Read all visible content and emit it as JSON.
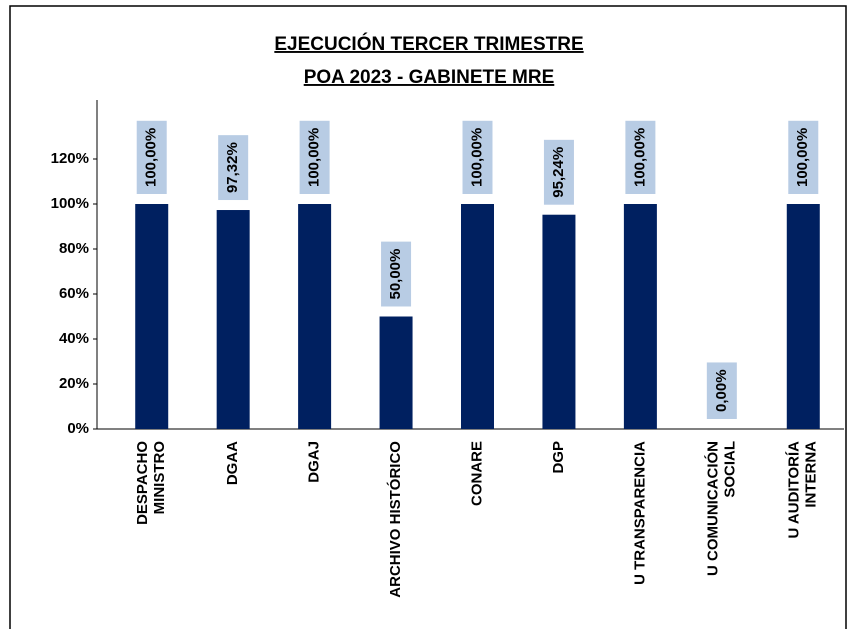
{
  "chart_data": {
    "type": "bar",
    "title": [
      "EJECUCIÓN TERCER TRIMESTRE",
      "POA 2023 - GABINETE MRE"
    ],
    "categories": [
      [
        "DESPACHO",
        "MINISTRO"
      ],
      [
        "DGAA"
      ],
      [
        "DGAJ"
      ],
      [
        "ARCHIVO HISTÓRICO"
      ],
      [
        "CONARE"
      ],
      [
        "DGP"
      ],
      [
        "U TRANSPARENCIA"
      ],
      [
        "U COMUNICACIÓN",
        "SOCIAL"
      ],
      [
        "U AUDITORÍA",
        "INTERNA"
      ]
    ],
    "values": [
      100,
      97.32,
      100,
      50,
      100,
      95.24,
      100,
      0,
      100
    ],
    "value_labels": [
      "100,00%",
      "97,32%",
      "100,00%",
      "50,00%",
      "100,00%",
      "95,24%",
      "100,00%",
      "0,00%",
      "100,00%"
    ],
    "color": "#002060",
    "label_color": "#b8cce4",
    "ylim": [
      0,
      120
    ],
    "yticks": [
      {
        "value": 0,
        "label": "0%"
      },
      {
        "value": 20,
        "label": "20%"
      },
      {
        "value": 40,
        "label": "40%"
      },
      {
        "value": 60,
        "label": "60%"
      },
      {
        "value": 80,
        "label": "80%"
      },
      {
        "value": 100,
        "label": "100%"
      },
      {
        "value": 120,
        "label": "120%"
      }
    ],
    "grid": false
  }
}
